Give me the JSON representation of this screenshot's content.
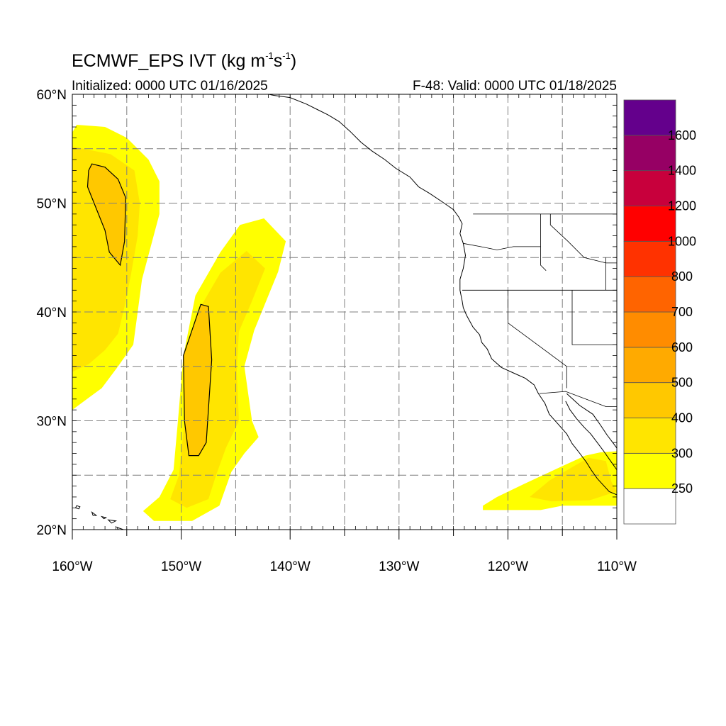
{
  "header": {
    "title_main": "ECMWF_EPS IVT (kg m",
    "title_exp1": "-1",
    "title_mid": "s",
    "title_exp2": "-1",
    "title_end": ")",
    "init_text": "Initialized: 0000 UTC 01/16/2025",
    "valid_text": "F-48: Valid: 0000 UTC 01/18/2025"
  },
  "axes": {
    "lon_range": [
      -160,
      -110
    ],
    "lat_range": [
      20,
      60
    ],
    "lat_labels": [
      {
        "text": "60°N",
        "lat": 60
      },
      {
        "text": "50°N",
        "lat": 50
      },
      {
        "text": "40°N",
        "lat": 40
      },
      {
        "text": "30°N",
        "lat": 30
      },
      {
        "text": "20°N",
        "lat": 20
      }
    ],
    "lon_labels": [
      {
        "text": "160°W",
        "lon": -160
      },
      {
        "text": "150°W",
        "lon": -150
      },
      {
        "text": "140°W",
        "lon": -140
      },
      {
        "text": "130°W",
        "lon": -130
      },
      {
        "text": "120°W",
        "lon": -120
      },
      {
        "text": "110°W",
        "lon": -110
      }
    ],
    "grid": "dashed every 5 degrees"
  },
  "colorbar": {
    "colors": [
      "#ffffff",
      "#ffff00",
      "#ffe500",
      "#ffc800",
      "#ffaa00",
      "#ff8c00",
      "#ff6400",
      "#ff3200",
      "#ff0000",
      "#c8003c",
      "#960064",
      "#64008c"
    ],
    "labels": [
      "250",
      "300",
      "400",
      "500",
      "600",
      "700",
      "800",
      "1000",
      "1200",
      "1400",
      "1600"
    ]
  },
  "ivt_fields": [
    {
      "name": "gulf-of-alaska-plume",
      "outer": [
        [
          -159.6,
          57.2
        ],
        [
          -157,
          57
        ],
        [
          -155,
          56
        ],
        [
          -153,
          54
        ],
        [
          -152,
          52
        ],
        [
          -152,
          49
        ],
        [
          -152.8,
          46
        ],
        [
          -153.6,
          43
        ],
        [
          -154,
          40
        ],
        [
          -154.4,
          37
        ],
        [
          -155.8,
          35
        ],
        [
          -157.3,
          33
        ],
        [
          -160,
          31
        ],
        [
          -160,
          56.5
        ]
      ],
      "inner": [
        [
          -159,
          55
        ],
        [
          -156.5,
          54.5
        ],
        [
          -154.3,
          53
        ],
        [
          -153.8,
          50
        ],
        [
          -154,
          47
        ],
        [
          -154.6,
          43.5
        ],
        [
          -155.2,
          40.5
        ],
        [
          -155.8,
          38
        ],
        [
          -157,
          36.5
        ],
        [
          -158.5,
          35.2
        ],
        [
          -160,
          34.5
        ],
        [
          -160,
          55.2
        ]
      ],
      "core": [
        [
          -158.2,
          53.6
        ],
        [
          -157,
          53.3
        ],
        [
          -155.8,
          52.2
        ],
        [
          -155.1,
          50.5
        ],
        [
          -155.2,
          46.5
        ],
        [
          -155.6,
          44.3
        ],
        [
          -156.6,
          45.5
        ],
        [
          -157,
          47.5
        ],
        [
          -158,
          50
        ],
        [
          -158.6,
          51.5
        ],
        [
          -158.5,
          53
        ]
      ]
    },
    {
      "name": "central-pacific-plume",
      "outer": [
        [
          -153.5,
          21.7
        ],
        [
          -152.5,
          20.8
        ],
        [
          -149,
          20.8
        ],
        [
          -146.5,
          22.2
        ],
        [
          -145.4,
          25.3
        ],
        [
          -144.2,
          27
        ],
        [
          -142.9,
          28.5
        ],
        [
          -143.5,
          30
        ],
        [
          -144.2,
          35
        ],
        [
          -143.3,
          38.3
        ],
        [
          -142.2,
          41
        ],
        [
          -141.1,
          43.7
        ],
        [
          -140.4,
          46.5
        ],
        [
          -142.4,
          48.6
        ],
        [
          -144.6,
          48
        ],
        [
          -146.4,
          45.5
        ],
        [
          -148.7,
          41.5
        ],
        [
          -149.8,
          36
        ],
        [
          -150.3,
          30
        ],
        [
          -150.7,
          25.5
        ],
        [
          -152,
          23
        ]
      ],
      "inner": [
        [
          -151,
          22.8
        ],
        [
          -149.5,
          22
        ],
        [
          -147.5,
          22.8
        ],
        [
          -146.8,
          25
        ],
        [
          -145.9,
          27.5
        ],
        [
          -144.7,
          30
        ],
        [
          -144.9,
          34.6
        ],
        [
          -144.7,
          38.2
        ],
        [
          -143.5,
          41
        ],
        [
          -142.3,
          44
        ],
        [
          -144,
          45.6
        ],
        [
          -146.4,
          43.6
        ],
        [
          -148.2,
          40.5
        ],
        [
          -149.3,
          36
        ],
        [
          -149.7,
          30
        ],
        [
          -150.2,
          25
        ]
      ],
      "core": [
        [
          -148.2,
          40.7
        ],
        [
          -147.5,
          40.5
        ],
        [
          -147.2,
          35.6
        ],
        [
          -147.7,
          28
        ],
        [
          -148.4,
          26.8
        ],
        [
          -149.3,
          26.8
        ],
        [
          -149.7,
          30
        ],
        [
          -149.8,
          36
        ]
      ]
    },
    {
      "name": "baja-plume",
      "outer": [
        [
          -122.3,
          22.2
        ],
        [
          -121,
          23
        ],
        [
          -118.5,
          24.2
        ],
        [
          -115.5,
          25.6
        ],
        [
          -112.9,
          26.8
        ],
        [
          -111.5,
          27.1
        ],
        [
          -110,
          27.2
        ],
        [
          -110,
          22.2
        ],
        [
          -115,
          22.2
        ],
        [
          -117,
          21.8
        ],
        [
          -122.3,
          21.8
        ]
      ],
      "inner": [
        [
          -118,
          23
        ],
        [
          -116.2,
          24.5
        ],
        [
          -114,
          25.8
        ],
        [
          -112.6,
          26.6
        ],
        [
          -111,
          26.3
        ],
        [
          -110.5,
          24.4
        ],
        [
          -110,
          23.5
        ],
        [
          -112.5,
          22.7
        ],
        [
          -116,
          22.6
        ]
      ]
    }
  ],
  "geography": {
    "coastline": [
      [
        -144.5,
        60
      ],
      [
        -143,
        60.2
      ],
      [
        -141.5,
        59.9
      ],
      [
        -140,
        59.7
      ],
      [
        -138.5,
        59.1
      ],
      [
        -137.5,
        58.6
      ],
      [
        -136.5,
        58.1
      ],
      [
        -135.5,
        57.5
      ],
      [
        -134.5,
        56.6
      ],
      [
        -133.5,
        55.6
      ],
      [
        -132.5,
        54.8
      ],
      [
        -131.3,
        54
      ],
      [
        -130.3,
        53.2
      ],
      [
        -129,
        52.4
      ],
      [
        -128.2,
        51.5
      ],
      [
        -127.2,
        50.9
      ],
      [
        -126,
        50.1
      ],
      [
        -125,
        49.4
      ],
      [
        -124.5,
        48.7
      ],
      [
        -124.2,
        48.1
      ],
      [
        -124.4,
        47.2
      ],
      [
        -124.1,
        46.3
      ],
      [
        -123.9,
        45.2
      ],
      [
        -124.1,
        44
      ],
      [
        -124.4,
        43
      ],
      [
        -124.4,
        42
      ],
      [
        -124.2,
        41
      ],
      [
        -124.1,
        40.4
      ],
      [
        -123.8,
        39.7
      ],
      [
        -123.2,
        38.6
      ],
      [
        -122.6,
        37.9
      ],
      [
        -122.4,
        37.2
      ],
      [
        -121.9,
        36.6
      ],
      [
        -121.5,
        35.7
      ],
      [
        -120.6,
        34.9
      ],
      [
        -119.5,
        34.4
      ],
      [
        -118.4,
        33.9
      ],
      [
        -117.6,
        33.3
      ],
      [
        -117.2,
        32.5
      ],
      [
        -116.6,
        31.6
      ],
      [
        -116.2,
        30.6
      ],
      [
        -115.4,
        29.7
      ],
      [
        -114.6,
        28.8
      ],
      [
        -114.1,
        27.9
      ],
      [
        -113.4,
        27
      ],
      [
        -112.8,
        26.2
      ],
      [
        -112.3,
        25.4
      ],
      [
        -111.8,
        24.7
      ],
      [
        -110.7,
        23.5
      ],
      [
        -110,
        23.2
      ]
    ],
    "gulf_coast": [
      [
        -114.7,
        31.8
      ],
      [
        -114.3,
        31
      ],
      [
        -113.7,
        30.2
      ],
      [
        -113,
        29.4
      ],
      [
        -112.4,
        28.8
      ],
      [
        -111.8,
        28
      ],
      [
        -111.2,
        27.2
      ],
      [
        -110.5,
        26.2
      ],
      [
        -110,
        25.5
      ]
    ],
    "mainland_mexico": [
      [
        -114.6,
        32.5
      ],
      [
        -113.4,
        31.4
      ],
      [
        -112.2,
        30.6
      ],
      [
        -111.5,
        29.6
      ],
      [
        -110.9,
        28.7
      ],
      [
        -110.3,
        27.9
      ],
      [
        -110,
        27.5
      ]
    ],
    "hawaii": [
      [
        [
          -159.6,
          22.2
        ],
        [
          -159.3,
          22.1
        ],
        [
          -159.4,
          21.9
        ],
        [
          -159.7,
          22
        ]
      ],
      [
        [
          -158.2,
          21.6
        ],
        [
          -157.8,
          21.3
        ],
        [
          -158.1,
          21.3
        ]
      ],
      [
        [
          -157.3,
          21.2
        ],
        [
          -156.9,
          21.1
        ],
        [
          -157.1,
          21.0
        ]
      ],
      [
        [
          -156.7,
          20.9
        ],
        [
          -156.0,
          20.8
        ],
        [
          -156.4,
          20.6
        ]
      ],
      [
        [
          -155.9,
          20.2
        ],
        [
          -155.0,
          19.9
        ],
        [
          -155.5,
          19.5
        ]
      ]
    ],
    "borders": [
      [
        [
          -123.2,
          49
        ],
        [
          -110,
          49
        ]
      ],
      [
        [
          -124.1,
          46.3
        ],
        [
          -122.5,
          46
        ],
        [
          -121,
          45.7
        ],
        [
          -119.5,
          46
        ],
        [
          -117,
          46
        ]
      ],
      [
        [
          -117,
          49
        ],
        [
          -117,
          44.3
        ],
        [
          -116.5,
          43.8
        ]
      ],
      [
        [
          -116.1,
          49
        ],
        [
          -116.1,
          48
        ],
        [
          -114.5,
          46.5
        ],
        [
          -113,
          45
        ],
        [
          -111,
          44.5
        ],
        [
          -110,
          44.5
        ]
      ],
      [
        [
          -124.2,
          42
        ],
        [
          -110,
          42
        ]
      ],
      [
        [
          -120,
          42
        ],
        [
          -120,
          39
        ],
        [
          -114.6,
          35
        ],
        [
          -114.6,
          33
        ]
      ],
      [
        [
          -117.1,
          32.5
        ],
        [
          -114.7,
          32.7
        ],
        [
          -111,
          31.3
        ],
        [
          -110,
          31.3
        ]
      ],
      [
        [
          -114.1,
          42
        ],
        [
          -114.1,
          37
        ],
        [
          -110,
          37
        ]
      ],
      [
        [
          -111,
          45
        ],
        [
          -111,
          42
        ]
      ]
    ]
  }
}
